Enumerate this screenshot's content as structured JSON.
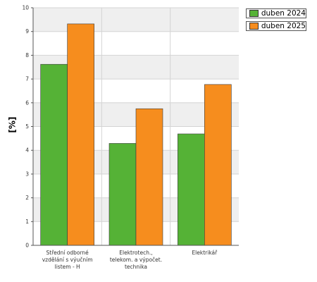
{
  "chart_data": {
    "type": "bar",
    "categories": [
      "Střední odborné vzdělání s výučním listem - H",
      "Elektrotech., telekom. a výpočet. technika",
      "Elektrikář"
    ],
    "series": [
      {
        "name": "duben 2024",
        "values": [
          7.62,
          4.29,
          4.69
        ],
        "color": "#55b236"
      },
      {
        "name": "duben 2025",
        "values": [
          9.32,
          5.75,
          6.77
        ],
        "color": "#f68d1e"
      }
    ],
    "ylabel": "[%]",
    "xlabel": "",
    "ylim": [
      0,
      10
    ],
    "yticks": [
      "0",
      "1",
      "2",
      "3",
      "4",
      "5",
      "6",
      "7",
      "8",
      "9",
      "10"
    ],
    "grid": true,
    "legend": "top-right"
  }
}
